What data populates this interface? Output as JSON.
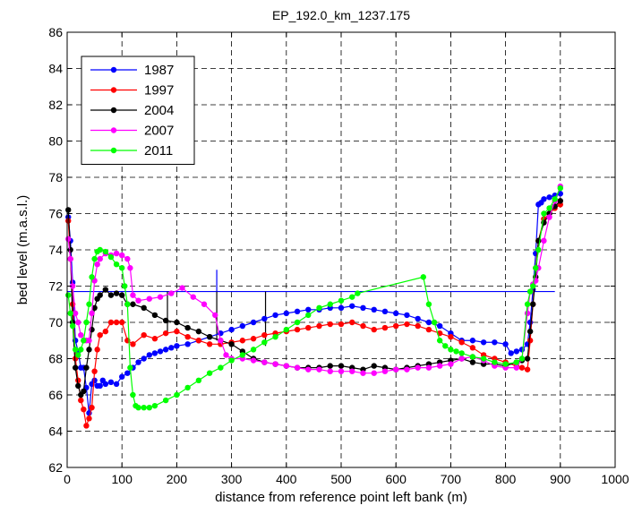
{
  "chart_data": {
    "type": "line",
    "title": "EP_192.0_km_1237.175",
    "xlabel": "distance from reference point left bank (m)",
    "ylabel": "bed level (m.a.s.l.)",
    "xlim": [
      0,
      1000
    ],
    "ylim": [
      62,
      86
    ],
    "xticks": [
      0,
      100,
      200,
      300,
      400,
      500,
      600,
      700,
      800,
      900,
      1000
    ],
    "yticks": [
      62,
      64,
      66,
      68,
      70,
      72,
      74,
      76,
      78,
      80,
      82,
      84,
      86
    ],
    "grid": true,
    "legend_position": "top-left",
    "series": [
      {
        "name": "1987",
        "color": "#0000ff",
        "x": [
          2,
          6,
          10,
          15,
          20,
          25,
          30,
          35,
          40,
          45,
          50,
          55,
          60,
          65,
          70,
          80,
          90,
          100,
          110,
          120,
          130,
          140,
          150,
          160,
          170,
          180,
          190,
          200,
          220,
          240,
          260,
          280,
          300,
          320,
          340,
          360,
          380,
          400,
          420,
          440,
          460,
          480,
          500,
          520,
          540,
          560,
          580,
          600,
          620,
          640,
          660,
          680,
          700,
          720,
          740,
          760,
          780,
          800,
          810,
          820,
          830,
          840,
          845,
          850,
          855,
          860,
          865,
          870,
          880,
          890,
          900
        ],
        "values": [
          75.8,
          74.5,
          72.2,
          69.0,
          68.4,
          67.5,
          67.5,
          66.4,
          65.0,
          66.6,
          66.8,
          66.5,
          66.5,
          66.8,
          66.6,
          66.7,
          66.6,
          67.0,
          67.2,
          67.5,
          67.8,
          68.0,
          68.2,
          68.3,
          68.4,
          68.5,
          68.6,
          68.7,
          68.8,
          69.0,
          69.2,
          69.4,
          69.6,
          69.8,
          70.0,
          70.2,
          70.4,
          70.5,
          70.6,
          70.7,
          70.7,
          70.8,
          70.8,
          70.9,
          70.8,
          70.7,
          70.6,
          70.5,
          70.4,
          70.2,
          70.0,
          69.8,
          69.4,
          69.0,
          69.0,
          68.9,
          68.9,
          68.8,
          68.3,
          68.4,
          68.5,
          68.8,
          70.0,
          71.8,
          73.8,
          76.5,
          76.6,
          76.8,
          76.9,
          77.0,
          77.1
        ]
      },
      {
        "name": "1997",
        "color": "#ff0000",
        "x": [
          2,
          6,
          10,
          15,
          20,
          25,
          30,
          35,
          40,
          45,
          50,
          55,
          60,
          70,
          80,
          90,
          100,
          110,
          120,
          140,
          160,
          180,
          200,
          220,
          240,
          260,
          280,
          300,
          320,
          340,
          360,
          380,
          400,
          420,
          440,
          460,
          480,
          500,
          520,
          540,
          560,
          580,
          600,
          620,
          640,
          660,
          680,
          700,
          720,
          740,
          760,
          780,
          800,
          820,
          830,
          840,
          845,
          850,
          855,
          860,
          870,
          880,
          890,
          900
        ],
        "values": [
          75.6,
          73.5,
          71.0,
          68.0,
          66.8,
          65.7,
          65.2,
          64.3,
          64.7,
          65.3,
          67.3,
          68.5,
          69.3,
          69.5,
          70.0,
          70.0,
          70.0,
          69.0,
          68.8,
          69.3,
          69.1,
          69.4,
          69.5,
          69.2,
          69.0,
          68.8,
          68.8,
          68.9,
          69.0,
          69.1,
          69.3,
          69.4,
          69.5,
          69.6,
          69.7,
          69.8,
          69.9,
          69.9,
          70.0,
          69.8,
          69.6,
          69.7,
          69.8,
          69.9,
          69.8,
          69.6,
          69.4,
          69.2,
          68.9,
          68.6,
          68.2,
          68.0,
          67.8,
          67.6,
          67.5,
          67.4,
          69.0,
          71.0,
          73.0,
          74.5,
          75.7,
          76.0,
          76.3,
          76.5
        ]
      },
      {
        "name": "2004",
        "color": "#000000",
        "x": [
          2,
          6,
          10,
          15,
          20,
          25,
          30,
          35,
          40,
          45,
          50,
          55,
          60,
          70,
          80,
          90,
          100,
          110,
          120,
          140,
          160,
          180,
          200,
          220,
          240,
          260,
          280,
          300,
          320,
          340,
          360,
          380,
          400,
          420,
          440,
          460,
          480,
          500,
          520,
          540,
          560,
          580,
          600,
          620,
          640,
          660,
          680,
          700,
          720,
          740,
          760,
          780,
          800,
          820,
          830,
          840,
          845,
          850,
          855,
          860,
          870,
          880,
          890,
          900
        ],
        "values": [
          76.2,
          74.0,
          70.0,
          67.5,
          66.5,
          66.0,
          66.2,
          67.5,
          68.5,
          69.6,
          70.8,
          71.3,
          71.5,
          71.8,
          71.5,
          71.6,
          71.5,
          71.0,
          71.0,
          70.8,
          70.4,
          70.1,
          70.0,
          69.7,
          69.5,
          69.2,
          69.0,
          68.8,
          68.4,
          68.0,
          67.8,
          67.7,
          67.6,
          67.5,
          67.5,
          67.5,
          67.6,
          67.6,
          67.5,
          67.4,
          67.6,
          67.5,
          67.4,
          67.5,
          67.6,
          67.7,
          67.8,
          67.9,
          68.0,
          67.8,
          67.7,
          67.7,
          67.6,
          67.8,
          67.9,
          68.0,
          69.5,
          71.0,
          72.5,
          74.5,
          75.5,
          76.0,
          76.4,
          76.7
        ]
      },
      {
        "name": "2007",
        "color": "#ff00ff",
        "x": [
          2,
          6,
          10,
          15,
          20,
          25,
          30,
          35,
          40,
          45,
          50,
          55,
          60,
          70,
          80,
          90,
          100,
          110,
          115,
          120,
          130,
          150,
          170,
          190,
          210,
          230,
          250,
          270,
          280,
          290,
          300,
          320,
          340,
          360,
          380,
          400,
          420,
          440,
          460,
          480,
          500,
          520,
          540,
          560,
          580,
          600,
          620,
          640,
          660,
          680,
          700,
          720,
          740,
          760,
          780,
          800,
          820,
          830,
          840,
          845,
          850,
          855,
          860,
          870,
          880,
          890,
          900
        ],
        "values": [
          74.6,
          73.5,
          72.0,
          70.5,
          70.0,
          69.3,
          69.0,
          69.0,
          69.0,
          70.5,
          72.3,
          73.2,
          73.5,
          73.8,
          73.7,
          73.8,
          73.7,
          73.5,
          73.0,
          71.5,
          71.2,
          71.3,
          71.4,
          71.6,
          71.9,
          71.4,
          71.0,
          70.4,
          69.0,
          68.2,
          68.0,
          68.0,
          67.9,
          67.8,
          67.7,
          67.6,
          67.5,
          67.4,
          67.4,
          67.3,
          67.3,
          67.3,
          67.2,
          67.2,
          67.3,
          67.4,
          67.4,
          67.5,
          67.5,
          67.6,
          67.7,
          68.0,
          68.1,
          67.9,
          67.6,
          67.5,
          67.5,
          68.0,
          70.5,
          71.7,
          72.1,
          72.3,
          73.0,
          74.5,
          75.8,
          76.7,
          77.5
        ]
      },
      {
        "name": "2011",
        "color": "#00ff00",
        "x": [
          2,
          6,
          10,
          15,
          20,
          25,
          30,
          35,
          40,
          45,
          50,
          55,
          60,
          70,
          80,
          90,
          100,
          105,
          110,
          115,
          120,
          125,
          130,
          140,
          150,
          160,
          180,
          200,
          220,
          240,
          260,
          280,
          300,
          320,
          340,
          360,
          380,
          400,
          420,
          440,
          460,
          480,
          500,
          520,
          530,
          650,
          660,
          670,
          680,
          690,
          700,
          710,
          720,
          740,
          760,
          780,
          800,
          820,
          830,
          840,
          845,
          850,
          855,
          860,
          870,
          880,
          890,
          900
        ],
        "values": [
          71.5,
          70.5,
          69.8,
          68.5,
          68.2,
          68.5,
          69.0,
          70.0,
          71.0,
          72.5,
          73.5,
          73.9,
          74.0,
          73.9,
          73.6,
          73.2,
          73.0,
          72.0,
          71.0,
          67.5,
          66.0,
          65.4,
          65.3,
          65.3,
          65.3,
          65.4,
          65.7,
          66.0,
          66.4,
          66.8,
          67.2,
          67.5,
          67.9,
          68.2,
          68.5,
          68.9,
          69.2,
          69.6,
          70.0,
          70.4,
          70.8,
          71.0,
          71.2,
          71.4,
          71.6,
          72.5,
          71.0,
          70.0,
          69.0,
          68.7,
          68.5,
          68.4,
          68.3,
          68.1,
          68.0,
          67.8,
          67.7,
          67.8,
          68.0,
          71.0,
          71.7,
          72.0,
          73.0,
          74.0,
          76.0,
          76.3,
          76.8,
          77.4
        ]
      }
    ],
    "annotation_line": {
      "color": "#0000ff",
      "x": [
        0,
        890
      ],
      "y": 71.7
    },
    "annotation_ticks": {
      "color": "#0000ff",
      "points": [
        {
          "x": 273,
          "y0": 71.7,
          "y1": 72.9
        }
      ]
    },
    "annotation_verticals": {
      "color": "#000000",
      "points": [
        {
          "x": 183,
          "y0": 69.4,
          "y1": 71.7
        },
        {
          "x": 273,
          "y0": 69.0,
          "y1": 71.7
        },
        {
          "x": 362,
          "y0": 68.7,
          "y1": 71.7
        }
      ]
    }
  }
}
